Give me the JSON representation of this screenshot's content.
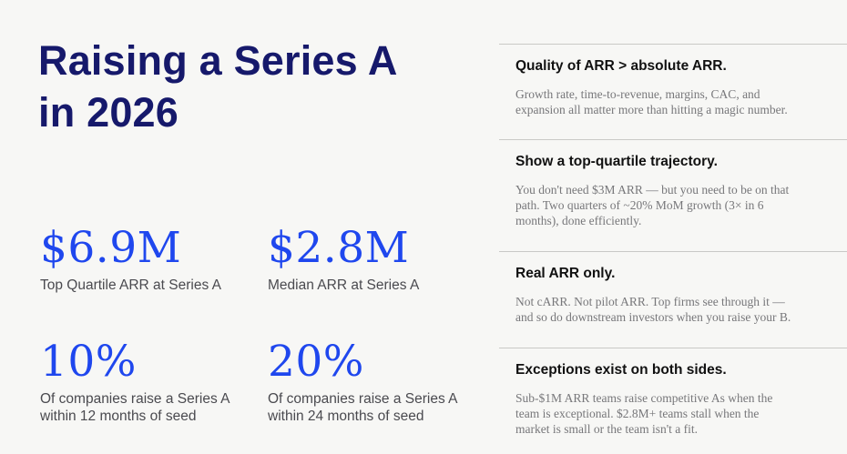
{
  "title": {
    "line1": "Raising a Series A",
    "line2": "in 2026"
  },
  "stats": [
    {
      "value": "$6.9M",
      "label_line1": "Top Quartile ARR at Series A",
      "label_line2": ""
    },
    {
      "value": "$2.8M",
      "label_line1": "Median ARR at Series A",
      "label_line2": ""
    },
    {
      "value": "10%",
      "label_line1": "Of companies raise a Series A",
      "label_line2": "within 12 months of seed"
    },
    {
      "value": "20%",
      "label_line1": "Of companies raise a Series A",
      "label_line2": "within 24 months of seed"
    }
  ],
  "points": [
    {
      "heading": "Quality of ARR > absolute ARR.",
      "body_lines": [
        "Growth rate, time-to-revenue, margins, CAC, and",
        "expansion all matter more than hitting a magic number."
      ]
    },
    {
      "heading": "Show a top-quartile trajectory.",
      "body_lines": [
        "You don't need $3M ARR — but you need to be on that",
        "path. Two quarters of ~20% MoM growth (3× in 6",
        "months), done efficiently."
      ]
    },
    {
      "heading": "Real ARR only.",
      "body_lines": [
        "Not cARR. Not pilot ARR. Top firms see through it —",
        "and so do downstream investors when you raise your B."
      ]
    },
    {
      "heading": "Exceptions exist on both sides.",
      "body_lines": [
        "Sub-$1M ARR teams raise competitive As when the",
        "team is exceptional. $2.8M+ teams stall when the",
        "market is small or the team isn't a fit."
      ]
    }
  ]
}
